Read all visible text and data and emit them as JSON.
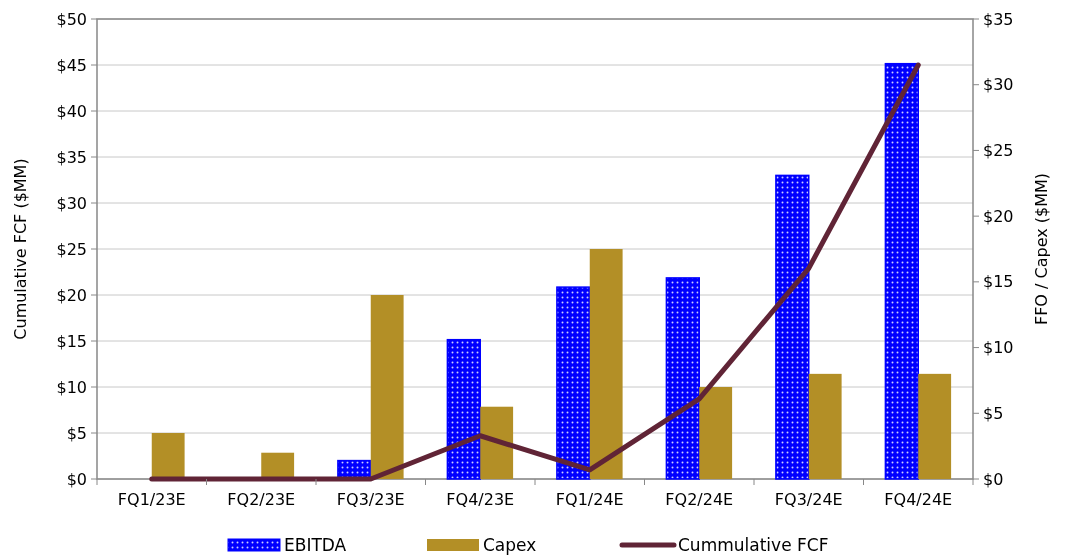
{
  "chart_data": {
    "type": "bar",
    "ylabel": "Cumulative FCF ($MM)",
    "y2label": "FFO / Capex ($MM)",
    "categories": [
      "FQ1/23E",
      "FQ2/23E",
      "FQ3/23E",
      "FQ4/23E",
      "FQ1/24E",
      "FQ2/24E",
      "FQ3/24E",
      "FQ4/24E"
    ],
    "series": [
      {
        "name": "EBITDA",
        "axis": "y2",
        "color": "#0000ff",
        "values": [
          0,
          0,
          1.4,
          10.6,
          14.6,
          15.3,
          23.1,
          31.6
        ]
      },
      {
        "name": "Capex",
        "axis": "y2",
        "color": "#b38f26",
        "values": [
          3.5,
          2,
          14,
          5.5,
          17.5,
          7,
          8,
          8
        ]
      },
      {
        "name": "Cummulative FCF",
        "type": "line",
        "axis": "y",
        "color": "#602436",
        "values": [
          0,
          0,
          0,
          4.7,
          1,
          8.7,
          22.9,
          45
        ]
      }
    ],
    "ylim": [
      0,
      50
    ],
    "yticks": [
      {
        "value": 0,
        "label": "$0"
      },
      {
        "value": 5,
        "label": "$5"
      },
      {
        "value": 10,
        "label": "$10"
      },
      {
        "value": 15,
        "label": "$15"
      },
      {
        "value": 20,
        "label": "$20"
      },
      {
        "value": 25,
        "label": "$25"
      },
      {
        "value": 30,
        "label": "$30"
      },
      {
        "value": 35,
        "label": "$35"
      },
      {
        "value": 40,
        "label": "$40"
      },
      {
        "value": 45,
        "label": "$45"
      },
      {
        "value": 50,
        "label": "$50"
      }
    ],
    "y2lim": [
      0,
      35
    ],
    "y2ticks": [
      {
        "value": 0,
        "label": "$0"
      },
      {
        "value": 5,
        "label": "$5"
      },
      {
        "value": 10,
        "label": "$10"
      },
      {
        "value": 15,
        "label": "$15"
      },
      {
        "value": 20,
        "label": "$20"
      },
      {
        "value": 25,
        "label": "$25"
      },
      {
        "value": 30,
        "label": "$30"
      },
      {
        "value": 35,
        "label": "$35"
      }
    ],
    "grid": "y",
    "legend": "bottom",
    "marker": "none",
    "line_style": "solid"
  }
}
